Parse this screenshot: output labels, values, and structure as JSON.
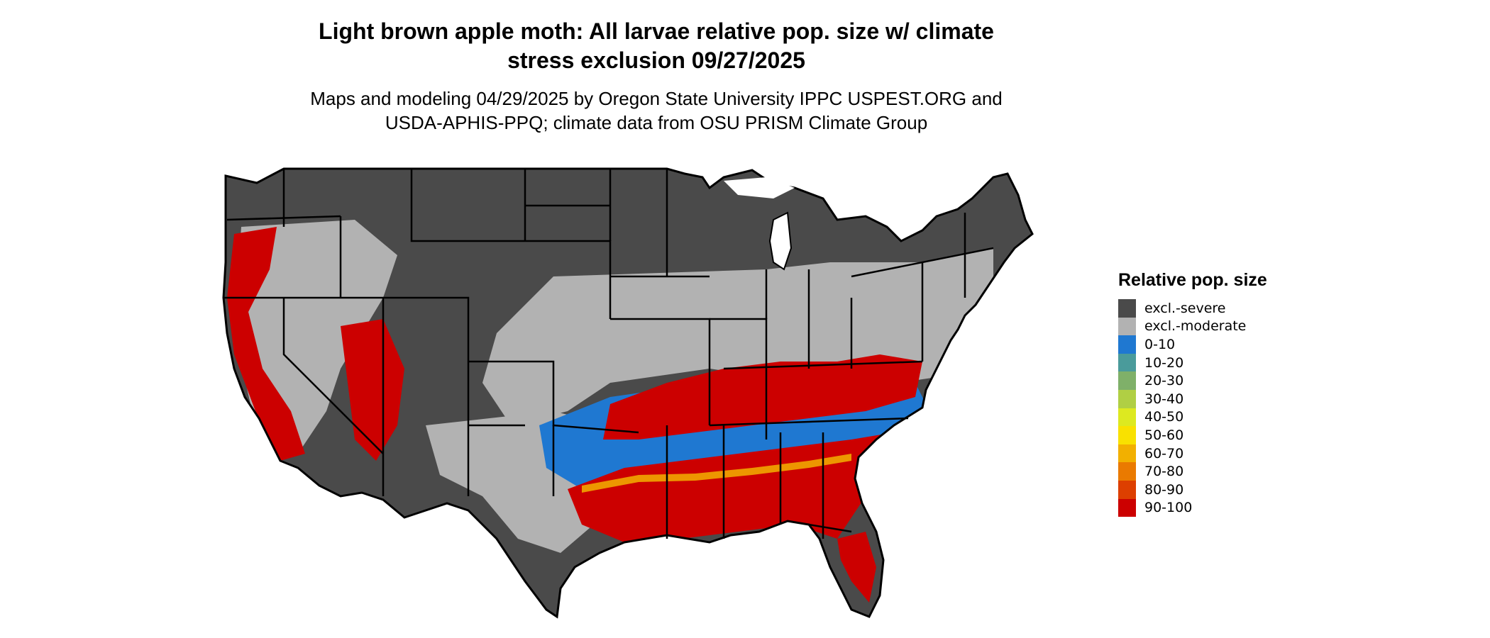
{
  "title_line1": "Light brown apple moth: All larvae relative pop. size w/ climate",
  "title_line2": "stress exclusion 09/27/2025",
  "subtitle_line1": "Maps and modeling 04/29/2025 by Oregon State University IPPC USPEST.ORG and",
  "subtitle_line2": "USDA-APHIS-PPQ; climate data from OSU PRISM Climate Group",
  "legend": {
    "title": "Relative pop. size",
    "items": [
      {
        "label": "excl.-severe",
        "color": "#4a4a4a"
      },
      {
        "label": "excl.-moderate",
        "color": "#b2b2b2"
      },
      {
        "label": "0-10",
        "color": "#1f78d1"
      },
      {
        "label": "10-20",
        "color": "#4a9b9b"
      },
      {
        "label": "20-30",
        "color": "#7fb069"
      },
      {
        "label": "30-40",
        "color": "#b0cf44"
      },
      {
        "label": "40-50",
        "color": "#dde920"
      },
      {
        "label": "50-60",
        "color": "#f9e100"
      },
      {
        "label": "60-70",
        "color": "#f2b000"
      },
      {
        "label": "70-80",
        "color": "#ea7a00"
      },
      {
        "label": "80-90",
        "color": "#dd3f00"
      },
      {
        "label": "90-100",
        "color": "#cc0000"
      }
    ]
  },
  "map_colors": {
    "severe": "#4a4a4a",
    "moderate": "#b2b2b2",
    "low": "#1f78d1",
    "mid": "#f2b000",
    "high": "#cc0000",
    "outline": "#000000"
  }
}
